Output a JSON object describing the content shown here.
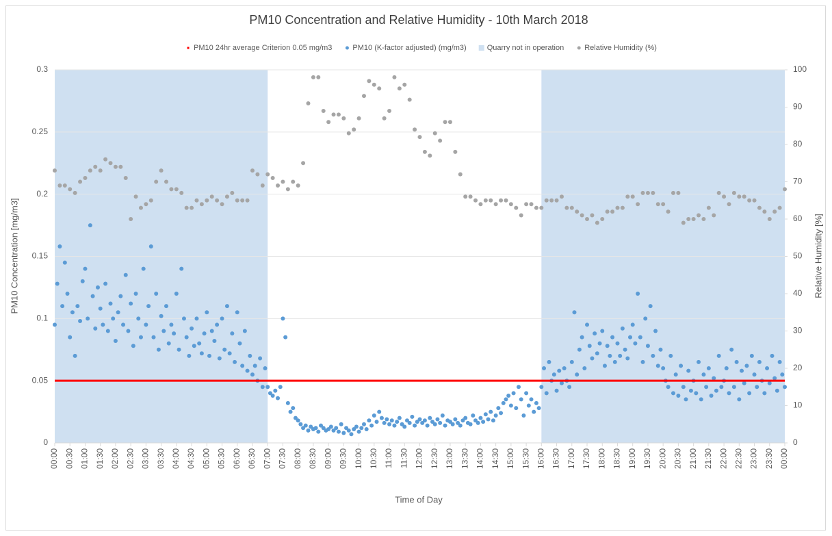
{
  "chart_data": {
    "type": "scatter",
    "title": "PM10 Concentration and Relative Humidity - 10th March 2018",
    "x_label": "Time of Day",
    "y_label": "PM10 Concentration [mg/m3]",
    "y2_label": "Relative Humidity [%]",
    "xlim": [
      0,
      1440
    ],
    "xticks": [
      {
        "value": 0,
        "label": "00:00"
      },
      {
        "value": 30,
        "label": "00:30"
      },
      {
        "value": 60,
        "label": "01:00"
      },
      {
        "value": 90,
        "label": "01:30"
      },
      {
        "value": 120,
        "label": "02:00"
      },
      {
        "value": 150,
        "label": "02:30"
      },
      {
        "value": 180,
        "label": "03:00"
      },
      {
        "value": 210,
        "label": "03:30"
      },
      {
        "value": 240,
        "label": "04:00"
      },
      {
        "value": 270,
        "label": "04:30"
      },
      {
        "value": 300,
        "label": "05:00"
      },
      {
        "value": 330,
        "label": "05:30"
      },
      {
        "value": 360,
        "label": "06:00"
      },
      {
        "value": 390,
        "label": "06:30"
      },
      {
        "value": 420,
        "label": "07:00"
      },
      {
        "value": 450,
        "label": "07:30"
      },
      {
        "value": 480,
        "label": "08:00"
      },
      {
        "value": 510,
        "label": "08:30"
      },
      {
        "value": 540,
        "label": "09:00"
      },
      {
        "value": 570,
        "label": "09:30"
      },
      {
        "value": 600,
        "label": "10:00"
      },
      {
        "value": 630,
        "label": "10:30"
      },
      {
        "value": 660,
        "label": "11:00"
      },
      {
        "value": 690,
        "label": "11:30"
      },
      {
        "value": 720,
        "label": "12:00"
      },
      {
        "value": 750,
        "label": "12:30"
      },
      {
        "value": 780,
        "label": "13:00"
      },
      {
        "value": 810,
        "label": "13:30"
      },
      {
        "value": 840,
        "label": "14:00"
      },
      {
        "value": 870,
        "label": "14:30"
      },
      {
        "value": 900,
        "label": "15:00"
      },
      {
        "value": 930,
        "label": "15:30"
      },
      {
        "value": 960,
        "label": "16:00"
      },
      {
        "value": 990,
        "label": "16:30"
      },
      {
        "value": 1020,
        "label": "17:00"
      },
      {
        "value": 1050,
        "label": "17:30"
      },
      {
        "value": 1080,
        "label": "18:00"
      },
      {
        "value": 1110,
        "label": "18:30"
      },
      {
        "value": 1140,
        "label": "19:00"
      },
      {
        "value": 1170,
        "label": "19:30"
      },
      {
        "value": 1200,
        "label": "20:00"
      },
      {
        "value": 1230,
        "label": "20:30"
      },
      {
        "value": 1260,
        "label": "21:00"
      },
      {
        "value": 1290,
        "label": "21:30"
      },
      {
        "value": 1320,
        "label": "22:00"
      },
      {
        "value": 1350,
        "label": "22:30"
      },
      {
        "value": 1380,
        "label": "23:00"
      },
      {
        "value": 1410,
        "label": "23:30"
      },
      {
        "value": 1440,
        "label": "00:00"
      }
    ],
    "ylim": [
      0,
      0.3
    ],
    "yticks": [
      0,
      0.05,
      0.1,
      0.15,
      0.2,
      0.25,
      0.3
    ],
    "y2lim": [
      0,
      100
    ],
    "y2ticks": [
      0,
      10,
      20,
      30,
      40,
      50,
      60,
      70,
      80,
      90,
      100
    ],
    "grid": true,
    "legend": "top",
    "series": [
      {
        "name": "PM10 24hr average Criterion 0.05 mg/m3",
        "type": "line",
        "color": "#ff0000",
        "x": [
          0,
          1440
        ],
        "values": [
          0.05,
          0.05
        ]
      },
      {
        "name": "PM10 (K-factor adjusted) (mg/m3)",
        "type": "scatter",
        "color": "#5b9bd5",
        "x": [
          0,
          5,
          10,
          15,
          20,
          25,
          30,
          35,
          40,
          45,
          50,
          55,
          60,
          65,
          70,
          75,
          80,
          85,
          90,
          95,
          100,
          105,
          110,
          115,
          120,
          125,
          130,
          135,
          140,
          145,
          150,
          155,
          160,
          165,
          170,
          175,
          180,
          185,
          190,
          195,
          200,
          205,
          210,
          215,
          220,
          225,
          230,
          235,
          240,
          245,
          250,
          255,
          260,
          265,
          270,
          275,
          280,
          285,
          290,
          295,
          300,
          305,
          310,
          315,
          320,
          325,
          330,
          335,
          340,
          345,
          350,
          355,
          360,
          365,
          370,
          375,
          380,
          385,
          390,
          395,
          400,
          405,
          410,
          415,
          420,
          425,
          430,
          435,
          440,
          445,
          450,
          455,
          460,
          465,
          470,
          475,
          480,
          485,
          490,
          495,
          500,
          505,
          510,
          515,
          520,
          525,
          530,
          535,
          540,
          545,
          550,
          555,
          560,
          565,
          570,
          575,
          580,
          585,
          590,
          595,
          600,
          605,
          610,
          615,
          620,
          625,
          630,
          635,
          640,
          645,
          650,
          655,
          660,
          665,
          670,
          675,
          680,
          685,
          690,
          695,
          700,
          705,
          710,
          715,
          720,
          725,
          730,
          735,
          740,
          745,
          750,
          755,
          760,
          765,
          770,
          775,
          780,
          785,
          790,
          795,
          800,
          805,
          810,
          815,
          820,
          825,
          830,
          835,
          840,
          845,
          850,
          855,
          860,
          865,
          870,
          875,
          880,
          885,
          890,
          895,
          900,
          905,
          910,
          915,
          920,
          925,
          930,
          935,
          940,
          945,
          950,
          955,
          960,
          965,
          970,
          975,
          980,
          985,
          990,
          995,
          1000,
          1005,
          1010,
          1015,
          1020,
          1025,
          1030,
          1035,
          1040,
          1045,
          1050,
          1055,
          1060,
          1065,
          1070,
          1075,
          1080,
          1085,
          1090,
          1095,
          1100,
          1105,
          1110,
          1115,
          1120,
          1125,
          1130,
          1135,
          1140,
          1145,
          1150,
          1155,
          1160,
          1165,
          1170,
          1175,
          1180,
          1185,
          1190,
          1195,
          1200,
          1205,
          1210,
          1215,
          1220,
          1225,
          1230,
          1235,
          1240,
          1245,
          1250,
          1255,
          1260,
          1265,
          1270,
          1275,
          1280,
          1285,
          1290,
          1295,
          1300,
          1305,
          1310,
          1315,
          1320,
          1325,
          1330,
          1335,
          1340,
          1345,
          1350,
          1355,
          1360,
          1365,
          1370,
          1375,
          1380,
          1385,
          1390,
          1395,
          1400,
          1405,
          1410,
          1415,
          1420,
          1425,
          1430,
          1435,
          1440
        ],
        "values": [
          0.095,
          0.128,
          0.158,
          0.11,
          0.145,
          0.12,
          0.085,
          0.105,
          0.07,
          0.11,
          0.098,
          0.13,
          0.14,
          0.1,
          0.175,
          0.118,
          0.092,
          0.125,
          0.108,
          0.095,
          0.128,
          0.09,
          0.112,
          0.1,
          0.082,
          0.105,
          0.118,
          0.095,
          0.135,
          0.09,
          0.112,
          0.078,
          0.12,
          0.1,
          0.085,
          0.14,
          0.095,
          0.11,
          0.158,
          0.085,
          0.12,
          0.075,
          0.102,
          0.09,
          0.11,
          0.08,
          0.095,
          0.088,
          0.12,
          0.075,
          0.14,
          0.1,
          0.085,
          0.07,
          0.092,
          0.078,
          0.1,
          0.08,
          0.072,
          0.088,
          0.105,
          0.07,
          0.09,
          0.082,
          0.095,
          0.068,
          0.1,
          0.075,
          0.11,
          0.072,
          0.088,
          0.065,
          0.105,
          0.08,
          0.062,
          0.09,
          0.058,
          0.07,
          0.055,
          0.062,
          0.05,
          0.068,
          0.045,
          0.06,
          0.045,
          0.04,
          0.038,
          0.042,
          0.036,
          0.045,
          0.1,
          0.085,
          0.032,
          0.025,
          0.028,
          0.02,
          0.018,
          0.015,
          0.012,
          0.014,
          0.01,
          0.013,
          0.011,
          0.012,
          0.009,
          0.014,
          0.012,
          0.01,
          0.011,
          0.013,
          0.01,
          0.012,
          0.009,
          0.015,
          0.008,
          0.012,
          0.01,
          0.007,
          0.011,
          0.013,
          0.009,
          0.012,
          0.015,
          0.011,
          0.018,
          0.014,
          0.022,
          0.017,
          0.025,
          0.02,
          0.016,
          0.019,
          0.015,
          0.018,
          0.014,
          0.017,
          0.02,
          0.015,
          0.013,
          0.018,
          0.016,
          0.021,
          0.014,
          0.017,
          0.019,
          0.016,
          0.018,
          0.014,
          0.02,
          0.017,
          0.015,
          0.019,
          0.016,
          0.022,
          0.014,
          0.018,
          0.017,
          0.015,
          0.019,
          0.016,
          0.014,
          0.018,
          0.02,
          0.016,
          0.015,
          0.022,
          0.018,
          0.016,
          0.02,
          0.017,
          0.023,
          0.019,
          0.025,
          0.018,
          0.022,
          0.028,
          0.024,
          0.032,
          0.035,
          0.038,
          0.03,
          0.04,
          0.028,
          0.045,
          0.035,
          0.022,
          0.04,
          0.03,
          0.035,
          0.025,
          0.032,
          0.028,
          0.045,
          0.06,
          0.04,
          0.065,
          0.05,
          0.055,
          0.042,
          0.058,
          0.048,
          0.06,
          0.05,
          0.045,
          0.065,
          0.105,
          0.055,
          0.075,
          0.085,
          0.06,
          0.095,
          0.078,
          0.068,
          0.088,
          0.072,
          0.08,
          0.09,
          0.062,
          0.078,
          0.07,
          0.085,
          0.065,
          0.08,
          0.07,
          0.092,
          0.075,
          0.068,
          0.085,
          0.095,
          0.08,
          0.12,
          0.085,
          0.065,
          0.1,
          0.078,
          0.11,
          0.07,
          0.09,
          0.062,
          0.075,
          0.06,
          0.05,
          0.045,
          0.07,
          0.04,
          0.055,
          0.038,
          0.062,
          0.045,
          0.035,
          0.058,
          0.042,
          0.05,
          0.04,
          0.065,
          0.035,
          0.055,
          0.045,
          0.06,
          0.038,
          0.052,
          0.042,
          0.07,
          0.045,
          0.05,
          0.06,
          0.04,
          0.075,
          0.045,
          0.065,
          0.035,
          0.058,
          0.048,
          0.062,
          0.04,
          0.07,
          0.055,
          0.045,
          0.065,
          0.05,
          0.04,
          0.06,
          0.048,
          0.07,
          0.052,
          0.042,
          0.065,
          0.055,
          0.045
        ]
      },
      {
        "name": "Quarry not in operation",
        "type": "band",
        "color": "#cfe0f1",
        "ranges": [
          [
            0,
            420
          ],
          [
            960,
            1440
          ]
        ]
      },
      {
        "name": "Relative Humidity (%)",
        "type": "scatter",
        "color": "#a5a5a5",
        "axis": "y2",
        "x": [
          0,
          10,
          20,
          30,
          40,
          50,
          60,
          70,
          80,
          90,
          100,
          110,
          120,
          130,
          140,
          150,
          160,
          170,
          180,
          190,
          200,
          210,
          220,
          230,
          240,
          250,
          260,
          270,
          280,
          290,
          300,
          310,
          320,
          330,
          340,
          350,
          360,
          370,
          380,
          390,
          400,
          410,
          420,
          430,
          440,
          450,
          460,
          470,
          480,
          490,
          500,
          510,
          520,
          530,
          540,
          550,
          560,
          570,
          580,
          590,
          600,
          610,
          620,
          630,
          640,
          650,
          660,
          670,
          680,
          690,
          700,
          710,
          720,
          730,
          740,
          750,
          760,
          770,
          780,
          790,
          800,
          810,
          820,
          830,
          840,
          850,
          860,
          870,
          880,
          890,
          900,
          910,
          920,
          930,
          940,
          950,
          960,
          970,
          980,
          990,
          1000,
          1010,
          1020,
          1030,
          1040,
          1050,
          1060,
          1070,
          1080,
          1090,
          1100,
          1110,
          1120,
          1130,
          1140,
          1150,
          1160,
          1170,
          1180,
          1190,
          1200,
          1210,
          1220,
          1230,
          1240,
          1250,
          1260,
          1270,
          1280,
          1290,
          1300,
          1310,
          1320,
          1330,
          1340,
          1350,
          1360,
          1370,
          1380,
          1390,
          1400,
          1410,
          1420,
          1430,
          1440
        ],
        "values": [
          73,
          69,
          69,
          68,
          67,
          70,
          71,
          73,
          74,
          73,
          76,
          75,
          74,
          74,
          71,
          60,
          66,
          63,
          64,
          65,
          70,
          73,
          70,
          68,
          68,
          67,
          63,
          63,
          65,
          64,
          65,
          66,
          65,
          64,
          66,
          67,
          65,
          65,
          65,
          73,
          72,
          69,
          72,
          71,
          69,
          70,
          68,
          70,
          69,
          75,
          91,
          98,
          98,
          89,
          86,
          88,
          88,
          87,
          83,
          84,
          87,
          93,
          97,
          96,
          95,
          87,
          89,
          98,
          95,
          96,
          92,
          84,
          82,
          78,
          77,
          83,
          81,
          86,
          86,
          78,
          72,
          66,
          66,
          65,
          64,
          65,
          65,
          64,
          65,
          65,
          64,
          63,
          61,
          64,
          64,
          63,
          63,
          65,
          65,
          65,
          66,
          63,
          63,
          62,
          61,
          60,
          61,
          59,
          60,
          62,
          62,
          63,
          63,
          66,
          66,
          64,
          67,
          67,
          67,
          64,
          64,
          62,
          67,
          67,
          59,
          60,
          60,
          61,
          60,
          63,
          61,
          67,
          66,
          64,
          67,
          66,
          66,
          65,
          65,
          63,
          62,
          60,
          62,
          63,
          68
        ]
      }
    ]
  }
}
